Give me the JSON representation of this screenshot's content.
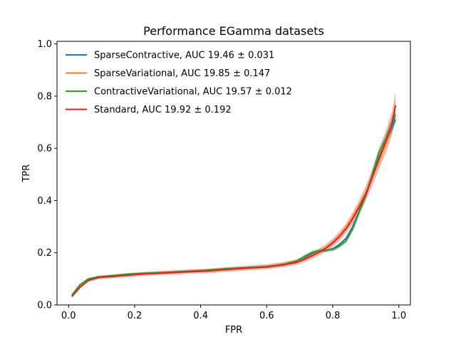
{
  "chart_data": {
    "type": "line",
    "title": "Performance EGamma datasets",
    "xlabel": "FPR",
    "ylabel": "TPR",
    "xlim": [
      -0.035,
      1.035
    ],
    "ylim": [
      0.0,
      1.01
    ],
    "xticks": [
      "0.0",
      "0.2",
      "0.4",
      "0.6",
      "0.8",
      "1.0"
    ],
    "yticks": [
      "0.0",
      "0.2",
      "0.4",
      "0.6",
      "0.8",
      "1.0"
    ],
    "grid": false,
    "legend_position": "top-left",
    "series": [
      {
        "name": "SparseContractive, AUC 19.46 ± 0.031",
        "color": "#1f77b4",
        "band": 0.006,
        "x": [
          0.01,
          0.035,
          0.06,
          0.09,
          0.13,
          0.18,
          0.23,
          0.3,
          0.36,
          0.42,
          0.48,
          0.54,
          0.6,
          0.65,
          0.69,
          0.72,
          0.74,
          0.76,
          0.78,
          0.8,
          0.82,
          0.84,
          0.86,
          0.88,
          0.9,
          0.92,
          0.94,
          0.96,
          0.98,
          0.99
        ],
        "y": [
          0.033,
          0.07,
          0.095,
          0.106,
          0.11,
          0.116,
          0.12,
          0.124,
          0.128,
          0.132,
          0.138,
          0.142,
          0.146,
          0.154,
          0.163,
          0.183,
          0.2,
          0.207,
          0.208,
          0.215,
          0.232,
          0.255,
          0.3,
          0.36,
          0.42,
          0.495,
          0.565,
          0.62,
          0.68,
          0.71
        ]
      },
      {
        "name": "SparseVariational, AUC 19.85 ± 0.147",
        "color": "#ff7f0e",
        "band": 0.02,
        "x": [
          0.01,
          0.035,
          0.06,
          0.09,
          0.13,
          0.18,
          0.23,
          0.3,
          0.36,
          0.42,
          0.48,
          0.54,
          0.6,
          0.65,
          0.69,
          0.72,
          0.74,
          0.76,
          0.78,
          0.8,
          0.82,
          0.84,
          0.86,
          0.88,
          0.9,
          0.92,
          0.94,
          0.96,
          0.98,
          0.99
        ],
        "y": [
          0.035,
          0.072,
          0.096,
          0.106,
          0.11,
          0.115,
          0.12,
          0.124,
          0.128,
          0.131,
          0.136,
          0.141,
          0.147,
          0.155,
          0.165,
          0.18,
          0.193,
          0.205,
          0.22,
          0.24,
          0.265,
          0.295,
          0.335,
          0.38,
          0.43,
          0.49,
          0.555,
          0.615,
          0.695,
          0.765
        ]
      },
      {
        "name": "ContractiveVariational, AUC 19.57 ± 0.012",
        "color": "#2ca02c",
        "band": 0.012,
        "x": [
          0.01,
          0.035,
          0.06,
          0.09,
          0.13,
          0.18,
          0.23,
          0.3,
          0.36,
          0.42,
          0.48,
          0.54,
          0.6,
          0.65,
          0.69,
          0.72,
          0.74,
          0.76,
          0.78,
          0.8,
          0.82,
          0.84,
          0.86,
          0.88,
          0.9,
          0.92,
          0.94,
          0.96,
          0.98,
          0.99
        ],
        "y": [
          0.038,
          0.078,
          0.1,
          0.108,
          0.112,
          0.118,
          0.121,
          0.125,
          0.129,
          0.133,
          0.139,
          0.143,
          0.146,
          0.155,
          0.168,
          0.19,
          0.203,
          0.208,
          0.21,
          0.212,
          0.225,
          0.245,
          0.29,
          0.355,
          0.42,
          0.5,
          0.585,
          0.635,
          0.695,
          0.73
        ]
      },
      {
        "name": "Standard, AUC 19.92 ± 0.192",
        "color": "#d62728",
        "band": 0.022,
        "x": [
          0.01,
          0.035,
          0.06,
          0.09,
          0.13,
          0.18,
          0.23,
          0.3,
          0.36,
          0.42,
          0.48,
          0.54,
          0.6,
          0.65,
          0.69,
          0.72,
          0.74,
          0.76,
          0.78,
          0.8,
          0.82,
          0.84,
          0.86,
          0.88,
          0.9,
          0.92,
          0.94,
          0.96,
          0.98,
          0.99
        ],
        "y": [
          0.032,
          0.068,
          0.094,
          0.105,
          0.109,
          0.114,
          0.119,
          0.123,
          0.127,
          0.13,
          0.136,
          0.141,
          0.146,
          0.154,
          0.163,
          0.178,
          0.19,
          0.203,
          0.218,
          0.238,
          0.262,
          0.292,
          0.33,
          0.375,
          0.425,
          0.49,
          0.56,
          0.625,
          0.7,
          0.765
        ]
      }
    ]
  }
}
